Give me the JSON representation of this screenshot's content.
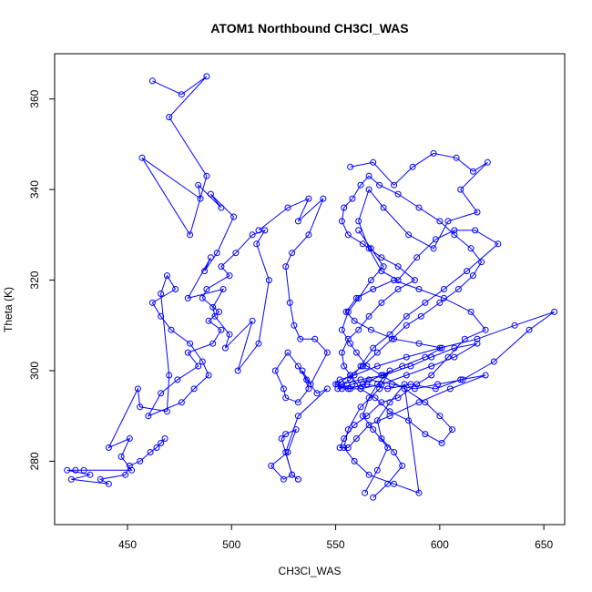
{
  "chart_data": {
    "type": "line",
    "title": "ATOM1 Northbound CH3Cl_WAS",
    "xlabel": "CH3Cl_WAS",
    "ylabel": "Theta (K)",
    "xlim": [
      415,
      660
    ],
    "ylim": [
      266,
      370
    ],
    "xticks": [
      450,
      500,
      550,
      600,
      650
    ],
    "yticks": [
      280,
      300,
      320,
      340,
      360
    ],
    "grid": false,
    "legend": "none",
    "colors": {
      "series": "#0000ff",
      "axes": "#000000",
      "background": "#ffffff"
    },
    "markers": "open-circle",
    "series": [
      {
        "x": [
          462,
          476,
          488,
          470,
          488,
          480,
          457,
          485,
          484,
          495,
          490,
          501,
          493,
          487,
          490,
          479,
          496,
          491,
          492,
          499,
          497,
          510,
          503,
          513,
          518,
          512,
          516,
          510,
          502,
          495,
          499,
          488,
          486,
          494,
          489,
          495,
          491,
          479,
          484,
          474,
          466,
          460,
          476,
          482,
          489,
          486,
          480,
          471,
          466,
          462,
          473,
          469,
          466,
          470,
          469,
          456,
          455,
          441,
          451,
          447,
          452,
          429,
          425,
          421,
          432,
          423,
          441,
          437,
          449,
          451,
          456,
          461,
          464,
          466,
          468
        ],
        "y": [
          364,
          361,
          365,
          356,
          343,
          330,
          347,
          338,
          341,
          336,
          339,
          334,
          326,
          322,
          325,
          316,
          318,
          314,
          312,
          308,
          305,
          311,
          300,
          306,
          320,
          328,
          331,
          330,
          326,
          323,
          321,
          318,
          316,
          313,
          311,
          309,
          306,
          304,
          301,
          298,
          295,
          290,
          293,
          296,
          299,
          302,
          306,
          309,
          312,
          315,
          318,
          321,
          317,
          299,
          291,
          292,
          296,
          283,
          285,
          281,
          278,
          278,
          278,
          278,
          277,
          276,
          275,
          276,
          277,
          279,
          280,
          282,
          283,
          284,
          285
        ]
      },
      {
        "x": [
          513,
          527,
          537,
          532,
          544,
          537,
          529,
          526,
          528,
          530,
          533,
          540,
          546,
          538,
          534,
          537,
          532,
          526,
          525,
          521,
          527,
          532,
          536,
          541,
          546,
          532,
          526,
          529,
          525,
          519,
          527,
          531,
          526,
          524,
          529,
          532,
          532
        ],
        "y": [
          331,
          336,
          338,
          333,
          338,
          330,
          326,
          323,
          315,
          310,
          307,
          307,
          304,
          297,
          300,
          296,
          293,
          294,
          296,
          300,
          304,
          301,
          298,
          295,
          296,
          290,
          282,
          277,
          276,
          279,
          282,
          287,
          286,
          285,
          277,
          276,
          276
        ]
      },
      {
        "x": [
          557,
          568,
          578,
          587,
          597,
          608,
          616,
          623,
          610,
          618,
          604,
          597,
          585,
          573,
          566,
          561,
          566,
          572,
          580,
          589,
          598,
          607,
          617,
          628,
          613,
          602,
          593,
          584,
          576,
          568,
          562,
          557,
          553,
          551,
          558,
          566,
          577,
          588,
          599,
          611,
          626,
          643,
          655,
          636,
          618,
          600,
          584,
          570,
          559,
          552,
          550,
          556,
          565,
          575,
          586,
          598,
          610,
          622,
          605,
          590,
          576,
          566,
          560,
          556,
          552,
          554,
          559,
          565,
          572,
          580,
          589,
          596,
          604,
          612,
          622,
          615,
          602,
          590,
          578,
          568,
          560,
          555,
          559,
          567,
          578,
          590,
          601,
          593,
          582,
          572,
          563,
          557,
          553,
          562,
          573,
          586,
          596,
          607,
          618,
          607,
          596,
          584,
          572,
          562,
          553,
          551,
          557,
          563,
          570,
          577,
          584,
          591,
          600,
          609,
          616,
          620,
          615,
          607,
          600,
          590,
          580,
          571,
          566,
          562,
          558,
          554,
          553,
          556,
          563,
          572,
          580,
          588,
          580,
          572,
          566,
          561,
          556,
          553,
          554,
          557,
          562,
          569,
          576,
          585,
          593,
          601,
          606,
          600,
          593,
          583,
          572,
          565,
          560,
          557,
          553,
          556,
          561,
          567,
          573,
          567,
          561
        ],
        "y": [
          345,
          346,
          341,
          345,
          348,
          347,
          344,
          346,
          340,
          335,
          333,
          327,
          330,
          336,
          340,
          333,
          327,
          322,
          320,
          325,
          329,
          331,
          331,
          328,
          322,
          318,
          315,
          312,
          308,
          305,
          301,
          298,
          297,
          296,
          297,
          298,
          297,
          296,
          297,
          298,
          302,
          309,
          313,
          310,
          307,
          305,
          303,
          301,
          299,
          298,
          297,
          296,
          297,
          296,
          297,
          296,
          298,
          299,
          296,
          293,
          290,
          288,
          285,
          283,
          283,
          285,
          288,
          290,
          293,
          294,
          297,
          299,
          303,
          307,
          309,
          313,
          316,
          318,
          320,
          318,
          316,
          313,
          311,
          309,
          307,
          306,
          305,
          303,
          301,
          299,
          297,
          296,
          297,
          298,
          299,
          301,
          303,
          305,
          306,
          303,
          301,
          299,
          297,
          296,
          296,
          297,
          299,
          301,
          304,
          307,
          310,
          312,
          315,
          318,
          321,
          324,
          327,
          330,
          333,
          336,
          339,
          341,
          343,
          341,
          338,
          336,
          333,
          330,
          328,
          325,
          323,
          320,
          318,
          315,
          312,
          309,
          307,
          304,
          301,
          299,
          296,
          294,
          291,
          289,
          286,
          284,
          287,
          290,
          293,
          296,
          299,
          301,
          304,
          306,
          309,
          313,
          316,
          320,
          323,
          327,
          331
        ]
      },
      {
        "x": [
          568,
          575,
          582,
          578,
          572,
          570,
          576,
          583,
          590,
          578,
          566,
          559,
          554,
          556,
          562,
          571,
          576,
          570,
          566,
          563,
          568,
          575,
          570,
          564
        ],
        "y": [
          272,
          275,
          279,
          282,
          285,
          289,
          293,
          297,
          273,
          275,
          277,
          280,
          283,
          287,
          292,
          296,
          300,
          297,
          294,
          290,
          287,
          283,
          278,
          273
        ]
      }
    ]
  }
}
